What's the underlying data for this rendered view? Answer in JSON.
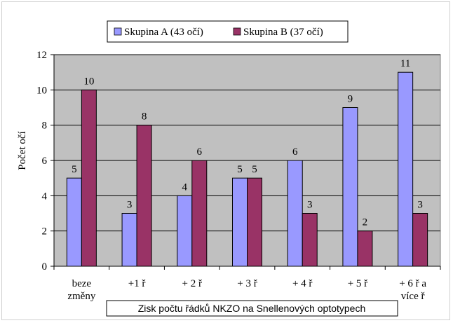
{
  "chart_data": {
    "type": "bar",
    "categories": [
      [
        "beze",
        "změny"
      ],
      [
        "+1 ř"
      ],
      [
        "+ 2 ř"
      ],
      [
        "+ 3 ř"
      ],
      [
        "+ 4 ř"
      ],
      [
        "+ 5 ř"
      ],
      [
        "+ 6 ř a",
        "více ř"
      ]
    ],
    "series": [
      {
        "name": "Skupina A (43 očí)",
        "values": [
          5,
          3,
          4,
          5,
          6,
          9,
          11
        ],
        "color": "#9999ff"
      },
      {
        "name": "Skupina B (37 očí)",
        "values": [
          10,
          8,
          6,
          5,
          3,
          2,
          3
        ],
        "color": "#993366"
      }
    ],
    "xlabel": "Zisk počtu řádků NKZO na Snellenových optotypech",
    "ylabel": "Počet očí",
    "ylim": [
      0,
      12
    ],
    "yticks": [
      0,
      2,
      4,
      6,
      8,
      10,
      12
    ],
    "grid": true,
    "plot_background": "#c0c0c0",
    "legend_position": "top"
  }
}
